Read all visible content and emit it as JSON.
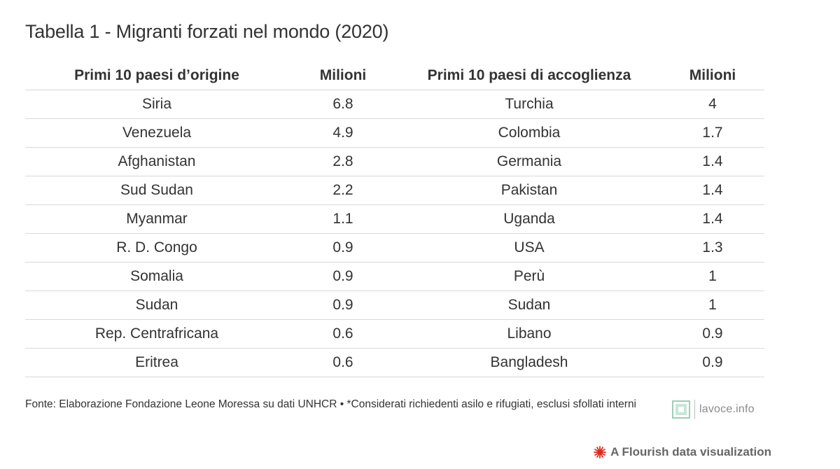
{
  "header": {
    "title": "Tabella 1 - Migranti forzati nel mondo (2020)"
  },
  "chart_data": {
    "type": "table",
    "columns": [
      "Primi 10 paesi d’origine",
      "Milioni",
      "Primi 10 paesi di accoglienza",
      "Milioni"
    ],
    "rows": [
      [
        "Siria",
        "6.8",
        "Turchia",
        "4"
      ],
      [
        "Venezuela",
        "4.9",
        "Colombia",
        "1.7"
      ],
      [
        "Afghanistan",
        "2.8",
        "Germania",
        "1.4"
      ],
      [
        "Sud Sudan",
        "2.2",
        "Pakistan",
        "1.4"
      ],
      [
        "Myanmar",
        "1.1",
        "Uganda",
        "1.4"
      ],
      [
        "R. D. Congo",
        "0.9",
        "USA",
        "1.3"
      ],
      [
        "Somalia",
        "0.9",
        "Perù",
        "1"
      ],
      [
        "Sudan",
        "0.9",
        "Sudan",
        "1"
      ],
      [
        "Rep. Centrafricana",
        "0.6",
        "Libano",
        "0.9"
      ],
      [
        "Eritrea",
        "0.6",
        "Bangladesh",
        "0.9"
      ]
    ]
  },
  "footer": {
    "note": "Fonte: Elaborazione Fondazione Leone Moressa su dati UNHCR • *Considerati richiedenti asilo e rifugiati, esclusi sfollati interni",
    "logo_text": "lavoce.info",
    "logo_icon": "lavoce-logo-icon",
    "credit": "A Flourish data visualization",
    "credit_icon": "flourish-logo-icon"
  },
  "colors": {
    "text": "#333333",
    "rule": "#d9d9d9",
    "logo_green": "#9ccfb5",
    "flourish_red": "#e1261c"
  }
}
